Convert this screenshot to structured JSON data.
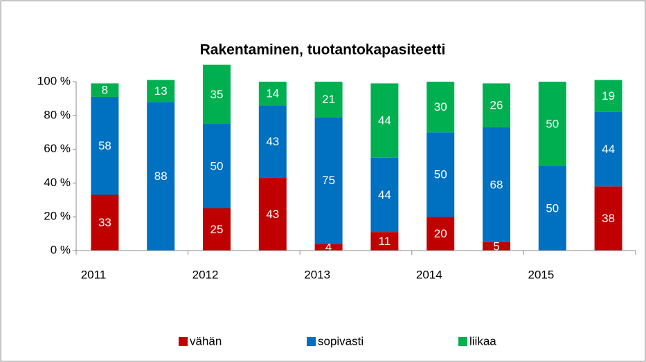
{
  "chart_data": {
    "type": "stacked_bar",
    "title": "Rakentaminen, tuotantokapasiteetti",
    "categories": [
      "2011",
      null,
      "2012",
      null,
      "2013",
      null,
      "2014",
      null,
      "2015",
      null
    ],
    "series": [
      {
        "name": "vähän",
        "color": "#c00000",
        "values": [
          33,
          null,
          25,
          43,
          4,
          11,
          20,
          5,
          null,
          38
        ]
      },
      {
        "name": "sopivasti",
        "color": "#0070c0",
        "values": [
          58,
          88,
          50,
          43,
          75,
          44,
          50,
          68,
          50,
          44
        ]
      },
      {
        "name": "liikaa",
        "color": "#00b050",
        "values": [
          8,
          13,
          35,
          14,
          21,
          44,
          30,
          26,
          50,
          19
        ]
      }
    ],
    "ylim": [
      0,
      100
    ],
    "yticks": [
      {
        "value": 0,
        "label": "0 %"
      },
      {
        "value": 20,
        "label": "20 %"
      },
      {
        "value": 40,
        "label": "40 %"
      },
      {
        "value": 60,
        "label": "60 %"
      },
      {
        "value": 80,
        "label": "80 %"
      },
      {
        "value": 100,
        "label": "100 %"
      }
    ],
    "legend": "bottom"
  }
}
